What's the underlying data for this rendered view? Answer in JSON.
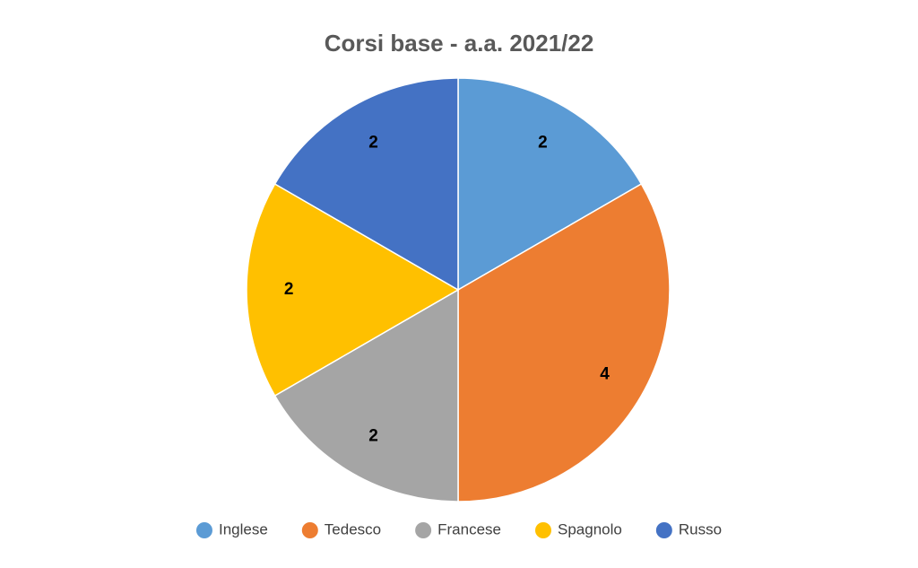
{
  "chart_data": {
    "type": "pie",
    "title": "Corsi base - a.a. 2021/22",
    "categories": [
      "Inglese",
      "Tedesco",
      "Francese",
      "Spagnolo",
      "Russo"
    ],
    "values": [
      2,
      4,
      2,
      2,
      2
    ],
    "colors": [
      "#5b9bd5",
      "#ed7d31",
      "#a5a5a5",
      "#ffc000",
      "#4472c4"
    ],
    "legend": "bottom"
  }
}
